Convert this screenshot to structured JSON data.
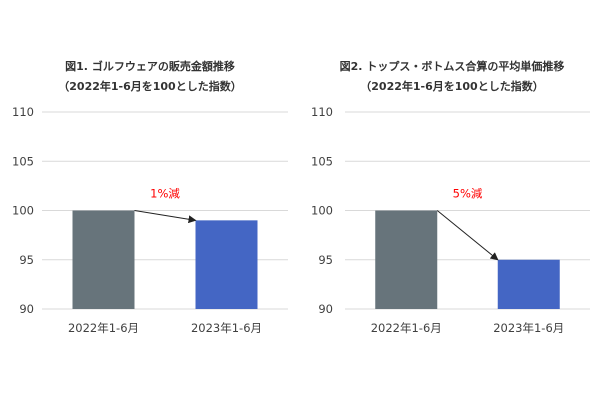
{
  "chart_data": [
    {
      "type": "bar",
      "title": "図1. ゴルフウェアの販売金額推移",
      "subtitle": "（2022年1-6月を100とした指数）",
      "categories": [
        "2022年1-6月",
        "2023年1-6月"
      ],
      "values": [
        100,
        99
      ],
      "colors": [
        "#67747b",
        "#4466c4"
      ],
      "ylim": [
        90,
        110
      ],
      "yticks": [
        90,
        95,
        100,
        105,
        110
      ],
      "grid": true,
      "annotation": "1%減",
      "annotation_color": "#ff0000"
    },
    {
      "type": "bar",
      "title": "図2. トップス・ボトムス合算の平均単価推移",
      "subtitle": "（2022年1-6月を100とした指数）",
      "categories": [
        "2022年1-6月",
        "2023年1-6月"
      ],
      "values": [
        100,
        95
      ],
      "colors": [
        "#67747b",
        "#4466c4"
      ],
      "ylim": [
        90,
        110
      ],
      "yticks": [
        90,
        95,
        100,
        105,
        110
      ],
      "grid": true,
      "annotation": "5%減",
      "annotation_color": "#ff0000"
    }
  ]
}
